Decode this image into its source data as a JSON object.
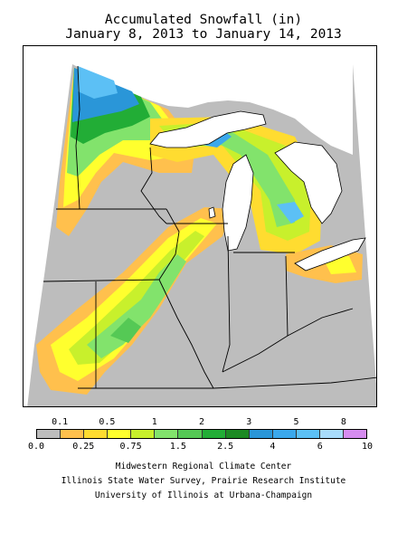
{
  "title_line1": "Accumulated Snowfall (in)",
  "title_line2": "January 8, 2013 to January 14, 2013",
  "legend": {
    "bins": [
      {
        "min": 0.0,
        "max": 0.1,
        "color": "#bdbdbd"
      },
      {
        "min": 0.1,
        "max": 0.25,
        "color": "#ffc04d"
      },
      {
        "min": 0.25,
        "max": 0.5,
        "color": "#ffdc30"
      },
      {
        "min": 0.5,
        "max": 0.75,
        "color": "#ffff2e"
      },
      {
        "min": 0.75,
        "max": 1,
        "color": "#c8f02c"
      },
      {
        "min": 1,
        "max": 1.5,
        "color": "#82e36c"
      },
      {
        "min": 1.5,
        "max": 2,
        "color": "#55c955"
      },
      {
        "min": 2,
        "max": 2.5,
        "color": "#22ad36"
      },
      {
        "min": 2.5,
        "max": 3,
        "color": "#1c8a23"
      },
      {
        "min": 3,
        "max": 4,
        "color": "#2a96d8"
      },
      {
        "min": 4,
        "max": 5,
        "color": "#3ba8ec"
      },
      {
        "min": 5,
        "max": 6,
        "color": "#5cc0f5"
      },
      {
        "min": 6,
        "max": 8,
        "color": "#a8dcfc"
      },
      {
        "min": 8,
        "max": 10,
        "color": "#d68cf0"
      }
    ],
    "upper_labels": [
      "0.1",
      "0.5",
      "1",
      "2",
      "3",
      "5",
      "8"
    ],
    "lower_labels": [
      "0.0",
      "0.25",
      "0.75",
      "1.5",
      "2.5",
      "4",
      "6",
      "10"
    ]
  },
  "credits": [
    "Midwestern Regional Climate Center",
    "Illinois State Water Survey, Prairie Research Institute",
    "University of Illinois at Urbana-Champaign"
  ]
}
